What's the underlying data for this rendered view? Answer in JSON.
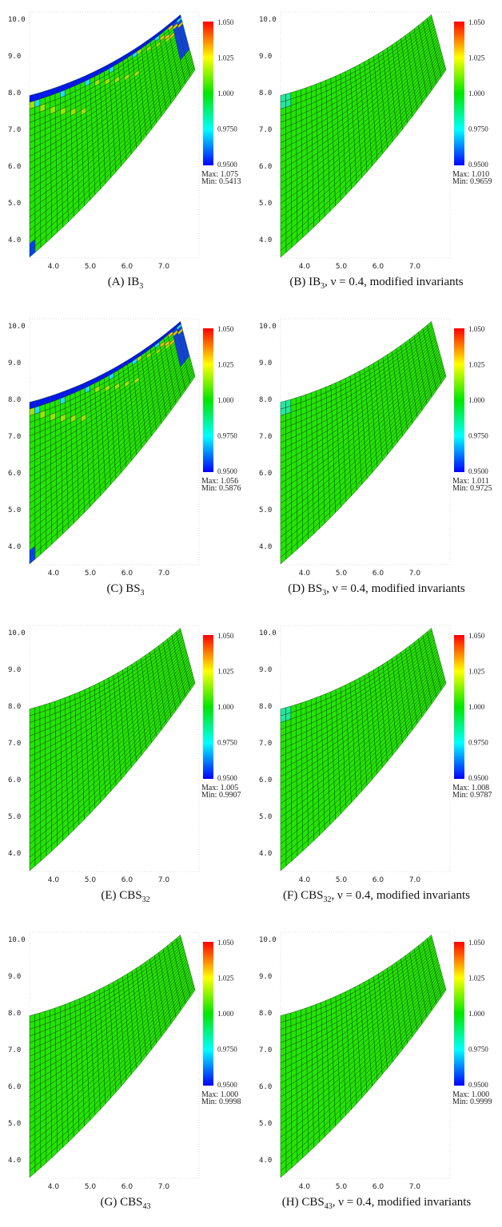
{
  "colorbar": {
    "ticks": [
      "1.050",
      "1.025",
      "1.000",
      "0.9750",
      "0.9500"
    ],
    "range": [
      0.95,
      1.05
    ],
    "colors": [
      "#0000ff",
      "#00ffff",
      "#00e600",
      "#ffff00",
      "#ff0000"
    ]
  },
  "axes": {
    "x_ticks": [
      "4.0",
      "5.0",
      "6.0",
      "7.0"
    ],
    "y_ticks": [
      "4.0",
      "5.0",
      "6.0",
      "7.0",
      "8.0",
      "9.0",
      "10.0"
    ]
  },
  "panels": [
    {
      "label": "(A)",
      "name": "IB",
      "sub": "3",
      "suffix": "",
      "max_label": "Max:",
      "max": "1.075",
      "min_label": "Min:",
      "min": "0.5413"
    },
    {
      "label": "(B)",
      "name": "IB",
      "sub": "3",
      "suffix": ", ν = 0.4, modified invariants",
      "max_label": "Max:",
      "max": "1.010",
      "min_label": "Min:",
      "min": "0.9659"
    },
    {
      "label": "(C)",
      "name": "BS",
      "sub": "3",
      "suffix": "",
      "max_label": "Max:",
      "max": "1.056",
      "min_label": "Min:",
      "min": "0.5876"
    },
    {
      "label": "(D)",
      "name": "BS",
      "sub": "3",
      "suffix": ", ν = 0.4, modified invariants",
      "max_label": "Max:",
      "max": "1.011",
      "min_label": "Min:",
      "min": "0.9725"
    },
    {
      "label": "(E)",
      "name": "CBS",
      "sub": "32",
      "suffix": "",
      "max_label": "Max:",
      "max": "1.005",
      "min_label": "Min:",
      "min": "0.9907"
    },
    {
      "label": "(F)",
      "name": "CBS",
      "sub": "32",
      "suffix": ", ν = 0.4, modified invariants",
      "max_label": "Max:",
      "max": "1.008",
      "min_label": "Min:",
      "min": "0.9787"
    },
    {
      "label": "(G)",
      "name": "CBS",
      "sub": "43",
      "suffix": "",
      "max_label": "Max:",
      "max": "1.000",
      "min_label": "Min:",
      "min": "0.9998"
    },
    {
      "label": "(H)",
      "name": "CBS",
      "sub": "43",
      "suffix": ", ν = 0.4, modified invariants",
      "max_label": "Max:",
      "max": "1.000",
      "min_label": "Min:",
      "min": "0.9999"
    }
  ]
}
